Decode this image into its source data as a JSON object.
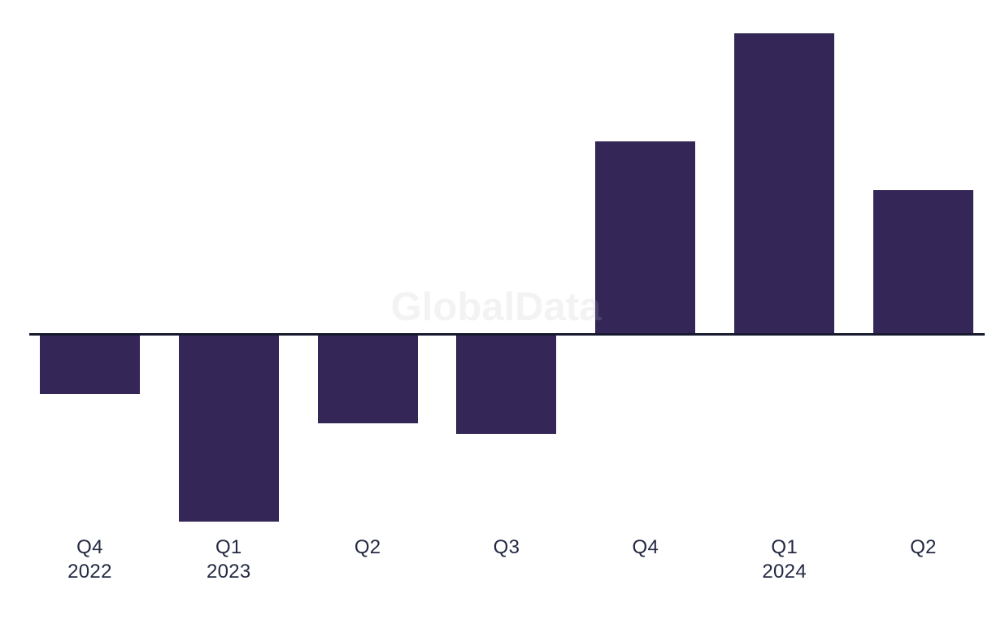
{
  "page": {
    "background": "#ffffff"
  },
  "chart_data": {
    "type": "bar",
    "title": "",
    "subtitle": "",
    "xlabel": "",
    "ylabel": "",
    "categories": [
      "Q4 2022",
      "Q1 2023",
      "Q2 2023",
      "Q3 2023",
      "Q4 2023",
      "Q1 2024",
      "Q2 2024"
    ],
    "tick_labels": [
      {
        "quarter": "Q4",
        "year": "2022"
      },
      {
        "quarter": "Q1",
        "year": "2023"
      },
      {
        "quarter": "Q2",
        "year": ""
      },
      {
        "quarter": "Q3",
        "year": ""
      },
      {
        "quarter": "Q4",
        "year": ""
      },
      {
        "quarter": "Q1",
        "year": "2024"
      },
      {
        "quarter": "Q2",
        "year": ""
      }
    ],
    "values": [
      -72,
      -229,
      -108,
      -121,
      236,
      369,
      176
    ],
    "value_units": "relative units (y-axis unlabeled; values proportional to bar heights, baseline = 0)",
    "ylim": [
      -260,
      380
    ],
    "grid": false,
    "legend": false,
    "single_series": true,
    "bar_color": "#342656",
    "axis_line_color": "#171a2e",
    "label_color": "#242943",
    "watermark": "GlobalData"
  }
}
